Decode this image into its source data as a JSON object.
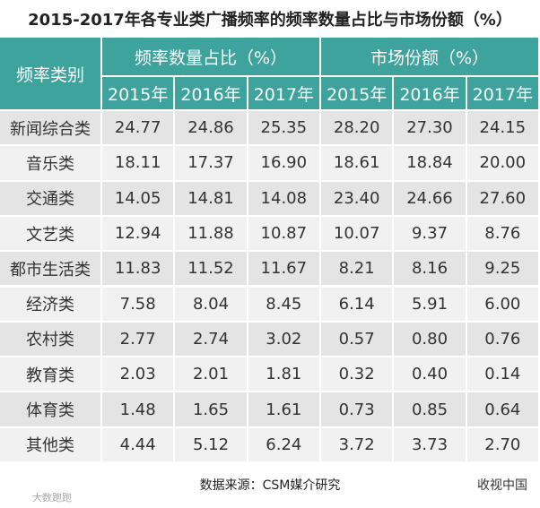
{
  "title": "2015-2017年各专业类广播频率的频率数量占比与市场份额（%）",
  "header": {
    "category": "频率类别",
    "groups": [
      "频率数量占比（%）",
      "市场份额（%）"
    ],
    "years": [
      "2015年",
      "2016年",
      "2017年",
      "2015年",
      "2016年",
      "2017年"
    ]
  },
  "table": {
    "rows": [
      [
        "新闻综合类",
        "24.77",
        "24.86",
        "25.35",
        "28.20",
        "27.30",
        "24.15"
      ],
      [
        "音乐类",
        "18.11",
        "17.37",
        "16.90",
        "18.61",
        "18.84",
        "20.00"
      ],
      [
        "交通类",
        "14.05",
        "14.81",
        "14.08",
        "23.40",
        "24.66",
        "27.60"
      ],
      [
        "文艺类",
        "12.94",
        "11.88",
        "10.87",
        "10.07",
        "9.37",
        "8.76"
      ],
      [
        "都市生活类",
        "11.83",
        "11.52",
        "11.67",
        "8.21",
        "8.16",
        "9.25"
      ],
      [
        "经济类",
        "7.58",
        "8.04",
        "8.45",
        "6.14",
        "5.91",
        "6.00"
      ],
      [
        "农村类",
        "2.77",
        "2.74",
        "3.02",
        "0.57",
        "0.80",
        "0.76"
      ],
      [
        "教育类",
        "2.03",
        "2.01",
        "1.81",
        "0.32",
        "0.40",
        "0.14"
      ],
      [
        "体育类",
        "1.48",
        "1.65",
        "1.61",
        "0.73",
        "0.85",
        "0.64"
      ],
      [
        "其他类",
        "4.44",
        "5.12",
        "6.24",
        "3.72",
        "3.73",
        "2.70"
      ]
    ]
  },
  "footer": {
    "source": "数据来源：CSM媒介研究",
    "watermark_left": "大数跑跑",
    "watermark_right": "收视中国"
  }
}
